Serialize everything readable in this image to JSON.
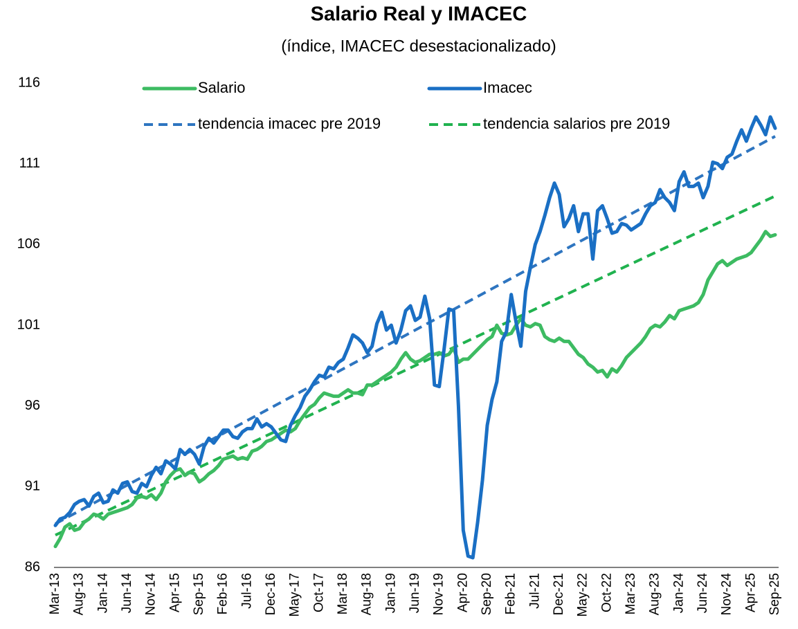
{
  "chart_data": {
    "type": "line",
    "title": "Salario Real y IMACEC",
    "subtitle": "(índice, IMACEC desestacionalizado)",
    "legend": "top",
    "grid": false,
    "ylim": [
      86,
      116
    ],
    "yticks": [
      86,
      91,
      96,
      101,
      106,
      111,
      116
    ],
    "categories": [
      "Mar-13",
      null,
      null,
      null,
      null,
      "Aug-13",
      null,
      null,
      null,
      null,
      "Jan-14",
      null,
      null,
      null,
      null,
      "Jun-14",
      null,
      null,
      null,
      null,
      "Nov-14",
      null,
      null,
      null,
      null,
      "Apr-15",
      null,
      null,
      null,
      null,
      "Sep-15",
      null,
      null,
      null,
      null,
      "Feb-16",
      null,
      null,
      null,
      null,
      "Jul-16",
      null,
      null,
      null,
      null,
      "Dec-16",
      null,
      null,
      null,
      null,
      "May-17",
      null,
      null,
      null,
      null,
      "Oct-17",
      null,
      null,
      null,
      null,
      "Mar-18",
      null,
      null,
      null,
      null,
      "Aug-18",
      null,
      null,
      null,
      null,
      "Jan-19",
      null,
      null,
      null,
      null,
      "Jun-19",
      null,
      null,
      null,
      null,
      "Nov-19",
      null,
      null,
      null,
      null,
      "Apr-20",
      null,
      null,
      null,
      null,
      "Sep-20",
      null,
      null,
      null,
      null,
      "Feb-21",
      null,
      null,
      null,
      null,
      "Jul-21",
      null,
      null,
      null,
      null,
      "Dec-21",
      null,
      null,
      null,
      null,
      "May-22",
      null,
      null,
      null,
      null,
      "Oct-22",
      null,
      null,
      null,
      null,
      "Mar-23",
      null,
      null,
      null,
      null,
      "Aug-23",
      null,
      null,
      null,
      null,
      "Jan-24",
      null,
      null,
      null,
      null,
      "Jun-24",
      null,
      null,
      null,
      null,
      "Nov-24",
      null,
      null,
      null,
      null,
      "Apr-25",
      null,
      null,
      null,
      null,
      "Sep-25"
    ],
    "series": [
      {
        "name": "Salario",
        "color": "#3dbb62",
        "dashed": false,
        "values": [
          87.3,
          87.8,
          88.5,
          88.7,
          88.3,
          88.4,
          88.8,
          89.0,
          89.3,
          89.2,
          89.0,
          89.3,
          89.4,
          89.5,
          89.6,
          89.7,
          89.9,
          90.3,
          90.4,
          90.3,
          90.5,
          90.2,
          90.6,
          91.3,
          91.7,
          92.0,
          92.1,
          91.7,
          91.9,
          91.8,
          91.3,
          91.5,
          91.8,
          92.0,
          92.3,
          92.7,
          92.8,
          92.9,
          92.7,
          92.8,
          92.7,
          93.2,
          93.3,
          93.5,
          93.8,
          93.9,
          94.1,
          94.3,
          94.5,
          94.4,
          94.6,
          95.1,
          95.5,
          95.9,
          96.1,
          96.5,
          96.8,
          96.7,
          96.6,
          96.6,
          96.8,
          97.0,
          96.8,
          96.8,
          96.7,
          97.3,
          97.3,
          97.5,
          97.7,
          97.9,
          98.1,
          98.4,
          98.9,
          99.3,
          98.9,
          98.7,
          98.8,
          99.0,
          99.2,
          99.2,
          99.3,
          99.1,
          99.2,
          99.6,
          98.7,
          98.9,
          98.9,
          99.2,
          99.5,
          99.8,
          100.1,
          100.3,
          101.0,
          100.5,
          100.4,
          100.5,
          101.0,
          101.4,
          101.0,
          100.9,
          101.1,
          101.0,
          100.3,
          100.1,
          100.0,
          100.2,
          100.0,
          100.0,
          99.6,
          99.2,
          99.0,
          98.6,
          98.4,
          98.1,
          98.2,
          97.8,
          98.3,
          98.1,
          98.5,
          99.0,
          99.3,
          99.6,
          99.9,
          100.3,
          100.8,
          101.0,
          100.9,
          101.2,
          101.6,
          101.4,
          101.9,
          102.0,
          102.1,
          102.2,
          102.4,
          102.9,
          103.8,
          104.3,
          104.8,
          105.0,
          104.7,
          104.9,
          105.1,
          105.2,
          105.3,
          105.5,
          105.9,
          106.3,
          106.8,
          106.5,
          106.6
        ]
      },
      {
        "name": "Imacec",
        "color": "#1a6fc4",
        "dashed": false,
        "values": [
          88.6,
          89.0,
          89.1,
          89.4,
          89.9,
          90.1,
          90.2,
          89.8,
          90.4,
          90.6,
          90.0,
          90.1,
          90.8,
          90.6,
          91.2,
          91.3,
          90.7,
          90.6,
          91.2,
          91.0,
          91.7,
          92.2,
          91.8,
          92.6,
          92.4,
          92.1,
          93.3,
          93.0,
          93.3,
          93.0,
          92.4,
          93.5,
          94.0,
          93.7,
          94.1,
          94.5,
          94.5,
          94.1,
          94.0,
          94.4,
          94.6,
          94.6,
          95.2,
          94.7,
          94.9,
          94.7,
          94.3,
          93.9,
          93.8,
          94.8,
          95.4,
          95.9,
          96.6,
          97.0,
          97.5,
          97.9,
          97.8,
          98.4,
          98.3,
          98.7,
          98.9,
          99.6,
          100.4,
          100.2,
          99.9,
          99.3,
          99.7,
          101.1,
          101.8,
          100.7,
          101.0,
          99.9,
          100.7,
          101.9,
          102.2,
          101.3,
          101.5,
          102.8,
          101.4,
          97.3,
          97.2,
          99.5,
          102.0,
          101.9,
          96.0,
          88.3,
          86.7,
          86.6,
          88.8,
          91.4,
          94.8,
          96.4,
          97.5,
          100.0,
          100.6,
          102.9,
          101.2,
          99.7,
          103.1,
          104.6,
          106.0,
          106.8,
          107.8,
          108.9,
          109.8,
          109.1,
          107.1,
          107.6,
          108.4,
          106.8,
          107.9,
          107.9,
          105.1,
          108.1,
          108.4,
          107.6,
          106.7,
          106.8,
          107.3,
          107.2,
          106.9,
          107.1,
          107.3,
          107.9,
          108.4,
          108.6,
          109.4,
          108.9,
          108.6,
          108.1,
          109.9,
          110.5,
          109.6,
          109.6,
          109.8,
          108.9,
          109.6,
          111.1,
          111.0,
          110.7,
          111.4,
          111.6,
          112.4,
          113.1,
          112.4,
          113.2,
          113.9,
          113.4,
          112.8,
          113.9,
          113.2
        ]
      },
      {
        "name": "tendencia imacec pre 2019",
        "color": "#2e75c0",
        "dashed": true,
        "values": [
          88.7,
          88.86,
          89.02,
          89.18,
          89.34,
          89.5,
          89.66,
          89.82,
          89.98,
          90.14,
          90.3,
          90.46,
          90.62,
          90.78,
          90.94,
          91.1,
          91.26,
          91.42,
          91.58,
          91.74,
          91.9,
          92.06,
          92.22,
          92.38,
          92.54,
          92.7,
          92.86,
          93.02,
          93.18,
          93.34,
          93.5,
          93.66,
          93.82,
          93.98,
          94.14,
          94.3,
          94.46,
          94.62,
          94.78,
          94.94,
          95.1,
          95.26,
          95.42,
          95.58,
          95.74,
          95.9,
          96.06,
          96.22,
          96.38,
          96.54,
          96.7,
          96.86,
          97.02,
          97.18,
          97.34,
          97.5,
          97.66,
          97.82,
          97.98,
          98.14,
          98.3,
          98.46,
          98.62,
          98.78,
          98.94,
          99.1,
          99.26,
          99.42,
          99.58,
          99.74,
          99.9,
          100.06,
          100.22,
          100.38,
          100.54,
          100.7,
          100.86,
          101.02,
          101.18,
          101.34,
          101.5,
          101.66,
          101.82,
          101.98,
          102.14,
          102.3,
          102.46,
          102.62,
          102.78,
          102.94,
          103.1,
          103.26,
          103.42,
          103.58,
          103.74,
          103.9,
          104.06,
          104.22,
          104.38,
          104.54,
          104.7,
          104.86,
          105.02,
          105.18,
          105.34,
          105.5,
          105.66,
          105.82,
          105.98,
          106.14,
          106.3,
          106.46,
          106.62,
          106.78,
          106.94,
          107.1,
          107.26,
          107.42,
          107.58,
          107.74,
          107.9,
          108.06,
          108.22,
          108.38,
          108.54,
          108.7,
          108.86,
          109.02,
          109.18,
          109.34,
          109.5,
          109.66,
          109.82,
          109.98,
          110.14,
          110.3,
          110.46,
          110.62,
          110.78,
          110.94,
          111.1,
          111.26,
          111.42,
          111.58,
          111.74,
          111.9,
          112.06,
          112.22,
          112.38,
          112.54,
          112.7
        ]
      },
      {
        "name": "tendencia salarios pre 2019",
        "color": "#20b24f",
        "dashed": true,
        "values": [
          88.0,
          88.14,
          88.28,
          88.42,
          88.56,
          88.7,
          88.84,
          88.98,
          89.12,
          89.26,
          89.4,
          89.54,
          89.68,
          89.82,
          89.96,
          90.1,
          90.24,
          90.38,
          90.52,
          90.66,
          90.8,
          90.94,
          91.08,
          91.22,
          91.36,
          91.5,
          91.64,
          91.78,
          91.92,
          92.06,
          92.2,
          92.34,
          92.48,
          92.62,
          92.76,
          92.9,
          93.04,
          93.18,
          93.32,
          93.46,
          93.6,
          93.74,
          93.88,
          94.02,
          94.16,
          94.3,
          94.44,
          94.58,
          94.72,
          94.86,
          95.0,
          95.14,
          95.28,
          95.42,
          95.56,
          95.7,
          95.84,
          95.98,
          96.12,
          96.26,
          96.4,
          96.54,
          96.68,
          96.82,
          96.96,
          97.1,
          97.24,
          97.38,
          97.52,
          97.66,
          97.8,
          97.94,
          98.08,
          98.22,
          98.36,
          98.5,
          98.64,
          98.78,
          98.92,
          99.06,
          99.2,
          99.34,
          99.48,
          99.62,
          99.76,
          99.9,
          100.04,
          100.18,
          100.32,
          100.46,
          100.6,
          100.74,
          100.88,
          101.02,
          101.16,
          101.3,
          101.44,
          101.58,
          101.72,
          101.86,
          102.0,
          102.14,
          102.28,
          102.42,
          102.56,
          102.7,
          102.84,
          102.98,
          103.12,
          103.26,
          103.4,
          103.54,
          103.68,
          103.82,
          103.96,
          104.1,
          104.24,
          104.38,
          104.52,
          104.66,
          104.8,
          104.94,
          105.08,
          105.22,
          105.36,
          105.5,
          105.64,
          105.78,
          105.92,
          106.06,
          106.2,
          106.34,
          106.48,
          106.62,
          106.76,
          106.9,
          107.04,
          107.18,
          107.32,
          107.46,
          107.6,
          107.74,
          107.88,
          108.02,
          108.16,
          108.3,
          108.44,
          108.58,
          108.72,
          108.86,
          109.0
        ]
      }
    ]
  }
}
